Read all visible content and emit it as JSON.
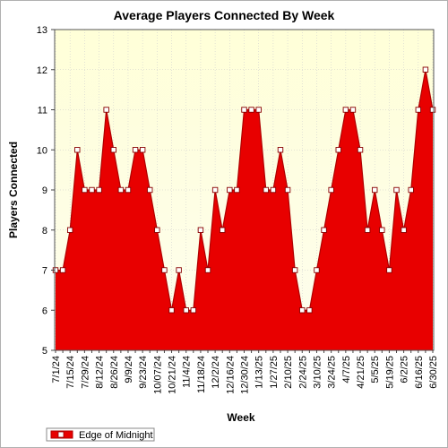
{
  "chart_data": {
    "type": "area",
    "title": "Average Players Connected By Week",
    "xlabel": "Week",
    "ylabel": "Players Connected",
    "ylim": [
      5,
      13
    ],
    "yticks": [
      5,
      6,
      7,
      8,
      9,
      10,
      11,
      12,
      13
    ],
    "grid": true,
    "legend_position": "bottom-left",
    "colors": {
      "fill": "#e80000",
      "line": "#b00000",
      "background_top": "#ffffd8",
      "background_bottom": "#fdfdee",
      "marker_fill": "#ffffff"
    },
    "x_tick_labels": [
      "7/1/24",
      "7/15/24",
      "7/29/24",
      "8/12/24",
      "8/26/24",
      "9/9/24",
      "9/23/24",
      "10/07/24",
      "10/21/24",
      "11/4/24",
      "11/18/24",
      "12/2/24",
      "12/16/24",
      "12/30/24",
      "1/13/25",
      "1/27/25",
      "2/10/25",
      "2/24/25",
      "3/10/25",
      "3/24/25",
      "4/7/25",
      "4/21/25",
      "5/5/25",
      "5/19/25",
      "6/2/25",
      "6/16/25",
      "6/30/25"
    ],
    "series": [
      {
        "name": "Edge of Midnight",
        "values": [
          7,
          7,
          8,
          10,
          9,
          9,
          9,
          11,
          10,
          9,
          9,
          10,
          10,
          9,
          8,
          7,
          6,
          7,
          6,
          6,
          8,
          7,
          9,
          8,
          9,
          9,
          11,
          11,
          11,
          9,
          9,
          10,
          9,
          7,
          6,
          6,
          7,
          8,
          9,
          10,
          11,
          11,
          10,
          8,
          9,
          8,
          7,
          9,
          8,
          9,
          11,
          12,
          11
        ]
      }
    ]
  }
}
